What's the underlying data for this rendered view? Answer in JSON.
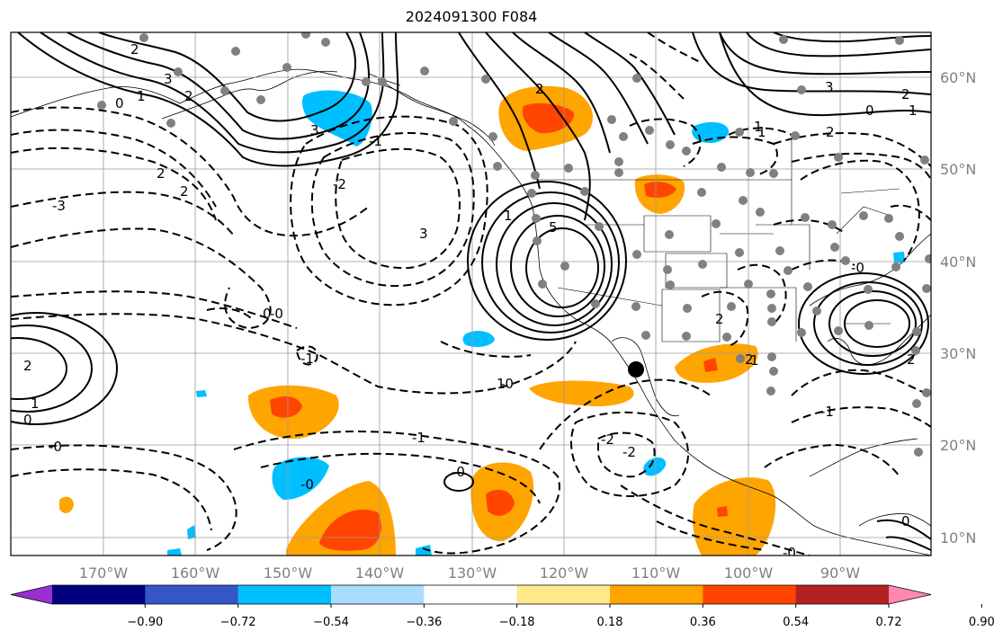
{
  "title": "2024091300 F084",
  "map": {
    "lat_labels": [
      "60°N",
      "50°N",
      "40°N",
      "30°N",
      "20°N",
      "10°N"
    ],
    "lon_labels": [
      "170°W",
      "160°W",
      "150°W",
      "140°W",
      "130°W",
      "120°W",
      "110°W",
      "100°W",
      "90°W"
    ],
    "contour_labels": {
      "pos": [
        "2",
        "3",
        "5",
        "1",
        "2",
        "1",
        "0",
        "2",
        "3",
        "2",
        "1",
        "0",
        "2",
        "1",
        "0",
        "2",
        "2",
        "1",
        "0",
        "1",
        "3"
      ],
      "neg": [
        "0",
        "1",
        "-3",
        "2",
        "2",
        "-1",
        "-2",
        "3",
        "-0",
        "-1",
        "-0",
        "-1",
        "-0",
        "-2",
        "-2",
        "-0",
        "-0",
        "-0",
        "-1",
        "2",
        "1",
        "-0",
        "2"
      ]
    }
  },
  "colorbar": {
    "ticks": [
      "−0.90",
      "−0.72",
      "−0.54",
      "−0.36",
      "−0.18",
      "0.18",
      "0.36",
      "0.54",
      "0.72",
      "0.90"
    ],
    "colors": [
      "#9b30d0",
      "#000080",
      "#3556c8",
      "#00bfff",
      "#aadcff",
      "#ffffff",
      "#ffe98a",
      "#ffa500",
      "#ff4500",
      "#b22222",
      "#ff87b0"
    ]
  }
}
